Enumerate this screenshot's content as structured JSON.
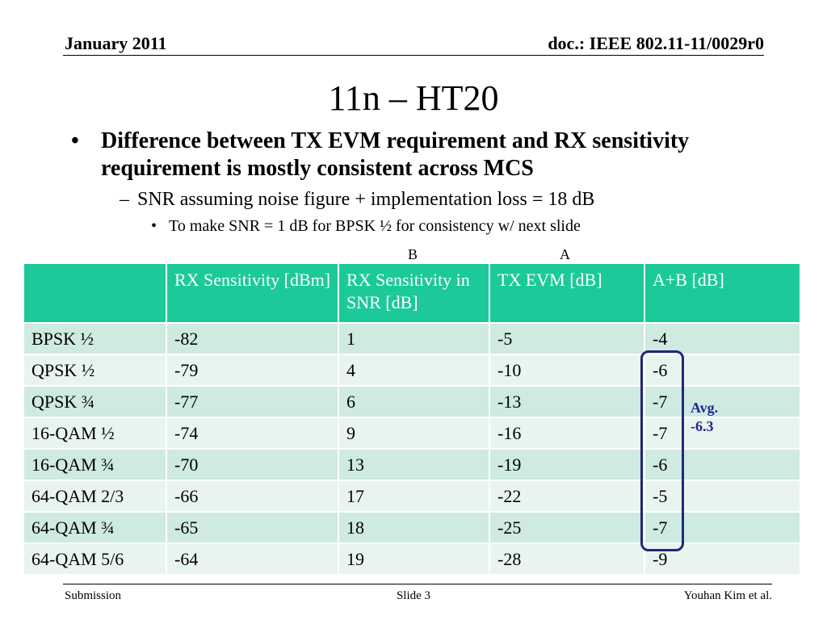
{
  "header": {
    "date": "January 2011",
    "doc_id": "doc.: IEEE 802.11-11/0029r0"
  },
  "slide": {
    "title": "11n – HT20",
    "bullet1": "Difference between TX EVM requirement and RX sensitivity requirement is mostly consistent across MCS",
    "bullet2": "SNR assuming noise figure + implementation loss = 18 dB",
    "bullet3": "To make SNR = 1 dB for BPSK ½ for consistency w/ next slide",
    "bullet_glyph": "•",
    "dash_glyph": "–"
  },
  "column_marks": {
    "b": "B",
    "a": "A"
  },
  "table": {
    "headers": [
      "",
      "RX Sensitivity [dBm]",
      "RX Sensitivity in SNR [dB]",
      "TX EVM [dB]",
      "A+B [dB]"
    ],
    "rows": [
      [
        "BPSK ½",
        "-82",
        "1",
        "-5",
        "-4"
      ],
      [
        "QPSK ½",
        "-79",
        "4",
        "-10",
        "-6"
      ],
      [
        "QPSK ¾",
        "-77",
        "6",
        "-13",
        "-7"
      ],
      [
        "16-QAM ½",
        "-74",
        "9",
        "-16",
        "-7"
      ],
      [
        "16-QAM ¾",
        "-70",
        "13",
        "-19",
        "-6"
      ],
      [
        "64-QAM 2/3",
        "-66",
        "17",
        "-22",
        "-5"
      ],
      [
        "64-QAM ¾",
        "-65",
        "18",
        "-25",
        "-7"
      ],
      [
        "64-QAM 5/6",
        "-64",
        "19",
        "-28",
        "-9"
      ]
    ]
  },
  "annotation": {
    "avg_label": "Avg.",
    "avg_value": "-6.3",
    "box_color": "#202878",
    "text_color": "#202890"
  },
  "footer": {
    "left": "Submission",
    "center": "Slide 3",
    "right": "Youhan Kim et al."
  },
  "colors": {
    "header_bg": "#1cc99a",
    "row_odd": "#cfeae0",
    "row_even": "#e8f5ef"
  }
}
